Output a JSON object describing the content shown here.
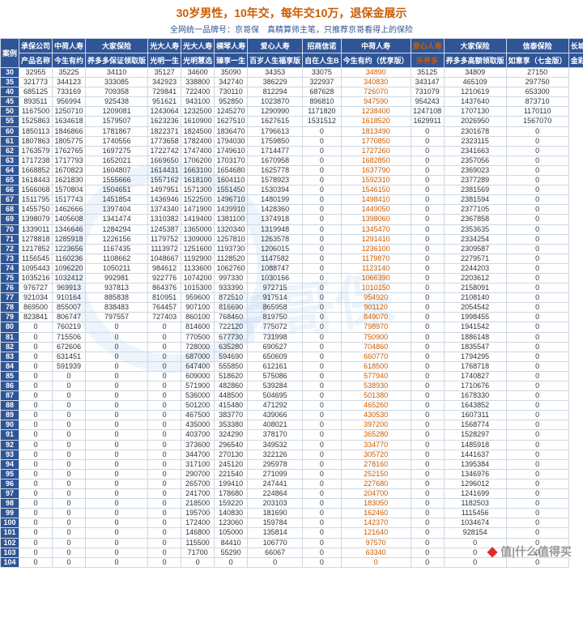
{
  "header": {
    "title": "30岁男性，10年交，每年交10万，退保金展示",
    "subtitle": "全网统一品牌号：京哥保　真精算师主笔，只推荐京哥看得上的保险",
    "title_color": "#cc5c00",
    "subtitle_color": "#2f5597"
  },
  "footer": {
    "watermark": "值|什么值得买"
  },
  "table": {
    "row1_labels": [
      "案例",
      "承保公司",
      "产品名称"
    ],
    "companies": [
      "中荷人寿",
      "大家保险",
      "光大人寿",
      "光大人寿",
      "横琴人寿",
      "爱心人寿",
      "招商信诺",
      "中荷人寿",
      "爱心人寿",
      "大家保险",
      "信泰保险",
      "长城人寿"
    ],
    "products": [
      "今生有约",
      "养多多保证领取版",
      "光明一生",
      "光明慧选",
      "臻享一生",
      "百岁人生福享版",
      "自在人生B",
      "今生有约（优享版）",
      "乐养多",
      "养多多高额领取版",
      "如意享（七金版）",
      "金彩一生"
    ],
    "highlight_col": 8,
    "header_bg": "#2f5597",
    "header_fg": "#ffffff",
    "border_color": "#cfd8e3",
    "highlight_color": "#cc5c00",
    "rows": [
      [
        "30",
        32955,
        35225,
        34110,
        35127,
        34600,
        35090,
        34353,
        33075,
        34890,
        35125,
        34809,
        27150
      ],
      [
        "35",
        321773,
        344123,
        333085,
        342923,
        338800,
        342740,
        386229,
        322937,
        340830,
        343147,
        465109,
        297750
      ],
      [
        "40",
        685125,
        733169,
        709358,
        729841,
        722400,
        730110,
        812294,
        687628,
        726070,
        731079,
        1210619,
        653300
      ],
      [
        "45",
        893511,
        956994,
        925438,
        951621,
        943100,
        952850,
        1023870,
        896810,
        947590,
        954243,
        1437640,
        873710
      ],
      [
        "50",
        1167500,
        1250710,
        1209081,
        1243064,
        1232500,
        1245270,
        1290990,
        1171820,
        1238400,
        1247108,
        1707130,
        1170110
      ],
      [
        "55",
        1525863,
        1634618,
        1579507,
        1623236,
        1610900,
        1627510,
        1627615,
        1531512,
        1618520,
        1629911,
        2026950,
        1567070
      ],
      [
        "60",
        1850113,
        1846866,
        1781867,
        1822371,
        1824500,
        1836470,
        1796613,
        0,
        1813490,
        0,
        2301678,
        0
      ],
      [
        "61",
        1807863,
        1805775,
        1740556,
        1773658,
        1782400,
        1794030,
        1759850,
        0,
        1770850,
        0,
        2323115,
        0
      ],
      [
        "62",
        1763579,
        1762765,
        1697275,
        1722742,
        1747400,
        1749610,
        1714477,
        0,
        1727260,
        0,
        2341663,
        0
      ],
      [
        "63",
        1717238,
        1717793,
        1652021,
        1669650,
        1706200,
        1703170,
        1670958,
        0,
        1682850,
        0,
        2357056,
        0
      ],
      [
        "64",
        1668852,
        1670823,
        1604807,
        1614431,
        1663100,
        1654680,
        1625778,
        0,
        1637790,
        0,
        2369023,
        0
      ],
      [
        "65",
        1618443,
        1621830,
        1555666,
        1557162,
        1618100,
        1604110,
        1578923,
        0,
        1592310,
        0,
        2377289,
        0
      ],
      [
        "66",
        1566068,
        1570804,
        1504651,
        1497951,
        1571300,
        1551450,
        1530394,
        0,
        1546150,
        0,
        2381569,
        0
      ],
      [
        "67",
        1511795,
        1517743,
        1451854,
        1436946,
        1522500,
        1496710,
        1480199,
        0,
        1498410,
        0,
        2381594,
        0
      ],
      [
        "68",
        1455750,
        1462666,
        1397404,
        1374340,
        1471900,
        1439910,
        1428360,
        0,
        1449050,
        0,
        2377105,
        0
      ],
      [
        "69",
        1398079,
        1405608,
        1341474,
        1310382,
        1419400,
        1381100,
        1374918,
        0,
        1398060,
        0,
        2367858,
        0
      ],
      [
        "70",
        1339011,
        1346646,
        1284294,
        1245387,
        1365000,
        1320340,
        1319948,
        0,
        1345470,
        0,
        2353635,
        0
      ],
      [
        "71",
        1278818,
        1285918,
        1226156,
        1179752,
        1309000,
        1257810,
        1263578,
        0,
        1291410,
        0,
        2334254,
        0
      ],
      [
        "72",
        1217852,
        1223656,
        1167435,
        1113972,
        1251600,
        1193730,
        1206015,
        0,
        1236100,
        0,
        2309587,
        0
      ],
      [
        "73",
        1156545,
        1160236,
        1108662,
        1048667,
        1192900,
        1128520,
        1147582,
        0,
        1179870,
        0,
        2279571,
        0
      ],
      [
        "74",
        1095443,
        1096220,
        1050211,
        984612,
        1133600,
        1062760,
        1088747,
        0,
        1123140,
        0,
        2244203,
        0
      ],
      [
        "75",
        1035216,
        1032412,
        992981,
        922776,
        1074200,
        997330,
        1030166,
        0,
        1066390,
        0,
        2203612,
        0
      ],
      [
        "76",
        976727,
        969913,
        937813,
        864376,
        1015300,
        933390,
        972715,
        0,
        1010150,
        0,
        2158091,
        0
      ],
      [
        "77",
        921034,
        910164,
        885838,
        810951,
        959600,
        872510,
        917514,
        0,
        954920,
        0,
        2108140,
        0
      ],
      [
        "78",
        869500,
        855007,
        838483,
        764457,
        907100,
        816690,
        865958,
        0,
        901120,
        0,
        2054542,
        0
      ],
      [
        "79",
        823841,
        806747,
        797557,
        727403,
        860100,
        768460,
        819750,
        0,
        849070,
        0,
        1998455,
        0
      ],
      [
        "80",
        0,
        760219,
        0,
        0,
        814600,
        722120,
        775072,
        0,
        798970,
        0,
        1941542,
        0
      ],
      [
        "81",
        0,
        715506,
        0,
        0,
        770500,
        677730,
        731998,
        0,
        750900,
        0,
        1886148,
        0
      ],
      [
        "82",
        0,
        672606,
        0,
        0,
        728000,
        635280,
        690527,
        0,
        704860,
        0,
        1835547,
        0
      ],
      [
        "83",
        0,
        631451,
        0,
        0,
        687000,
        594690,
        650609,
        0,
        660770,
        0,
        1794295,
        0
      ],
      [
        "84",
        0,
        591939,
        0,
        0,
        647400,
        555850,
        612161,
        0,
        618500,
        0,
        1768718,
        0
      ],
      [
        "85",
        0,
        0,
        0,
        0,
        609000,
        518620,
        575086,
        0,
        577940,
        0,
        1740827,
        0
      ],
      [
        "86",
        0,
        0,
        0,
        0,
        571900,
        482860,
        539284,
        0,
        538930,
        0,
        1710676,
        0
      ],
      [
        "87",
        0,
        0,
        0,
        0,
        536000,
        448500,
        504695,
        0,
        501380,
        0,
        1678330,
        0
      ],
      [
        "88",
        0,
        0,
        0,
        0,
        501200,
        415480,
        471292,
        0,
        465260,
        0,
        1643852,
        0
      ],
      [
        "89",
        0,
        0,
        0,
        0,
        467500,
        383770,
        439066,
        0,
        430530,
        0,
        1607311,
        0
      ],
      [
        "90",
        0,
        0,
        0,
        0,
        435000,
        353380,
        408021,
        0,
        397200,
        0,
        1568774,
        0
      ],
      [
        "91",
        0,
        0,
        0,
        0,
        403700,
        324290,
        378170,
        0,
        365280,
        0,
        1528297,
        0
      ],
      [
        "92",
        0,
        0,
        0,
        0,
        373600,
        296540,
        349532,
        0,
        334770,
        0,
        1485918,
        0
      ],
      [
        "93",
        0,
        0,
        0,
        0,
        344700,
        270130,
        322126,
        0,
        305720,
        0,
        1441637,
        0
      ],
      [
        "94",
        0,
        0,
        0,
        0,
        317100,
        245120,
        295978,
        0,
        278160,
        0,
        1395384,
        0
      ],
      [
        "95",
        0,
        0,
        0,
        0,
        290700,
        221540,
        271099,
        0,
        252150,
        0,
        1346976,
        0
      ],
      [
        "96",
        0,
        0,
        0,
        0,
        265700,
        199410,
        247441,
        0,
        227680,
        0,
        1296012,
        0
      ],
      [
        "97",
        0,
        0,
        0,
        0,
        241700,
        178680,
        224864,
        0,
        204700,
        0,
        1241699,
        0
      ],
      [
        "98",
        0,
        0,
        0,
        0,
        218500,
        159220,
        203103,
        0,
        183050,
        0,
        1182503,
        0
      ],
      [
        "99",
        0,
        0,
        0,
        0,
        195700,
        140830,
        181690,
        0,
        162460,
        0,
        1115456,
        0
      ],
      [
        "100",
        0,
        0,
        0,
        0,
        172400,
        123060,
        159784,
        0,
        142370,
        0,
        1034674,
        0
      ],
      [
        "101",
        0,
        0,
        0,
        0,
        146800,
        105000,
        135814,
        0,
        121640,
        0,
        928154,
        0
      ],
      [
        "102",
        0,
        0,
        0,
        0,
        115500,
        84410,
        106770,
        0,
        97570,
        0,
        0,
        0
      ],
      [
        "103",
        0,
        0,
        0,
        0,
        71700,
        55290,
        66067,
        0,
        63340,
        0,
        0,
        0
      ],
      [
        "104",
        0,
        0,
        0,
        0,
        0,
        0,
        0,
        0,
        0,
        0,
        0,
        0
      ]
    ]
  }
}
